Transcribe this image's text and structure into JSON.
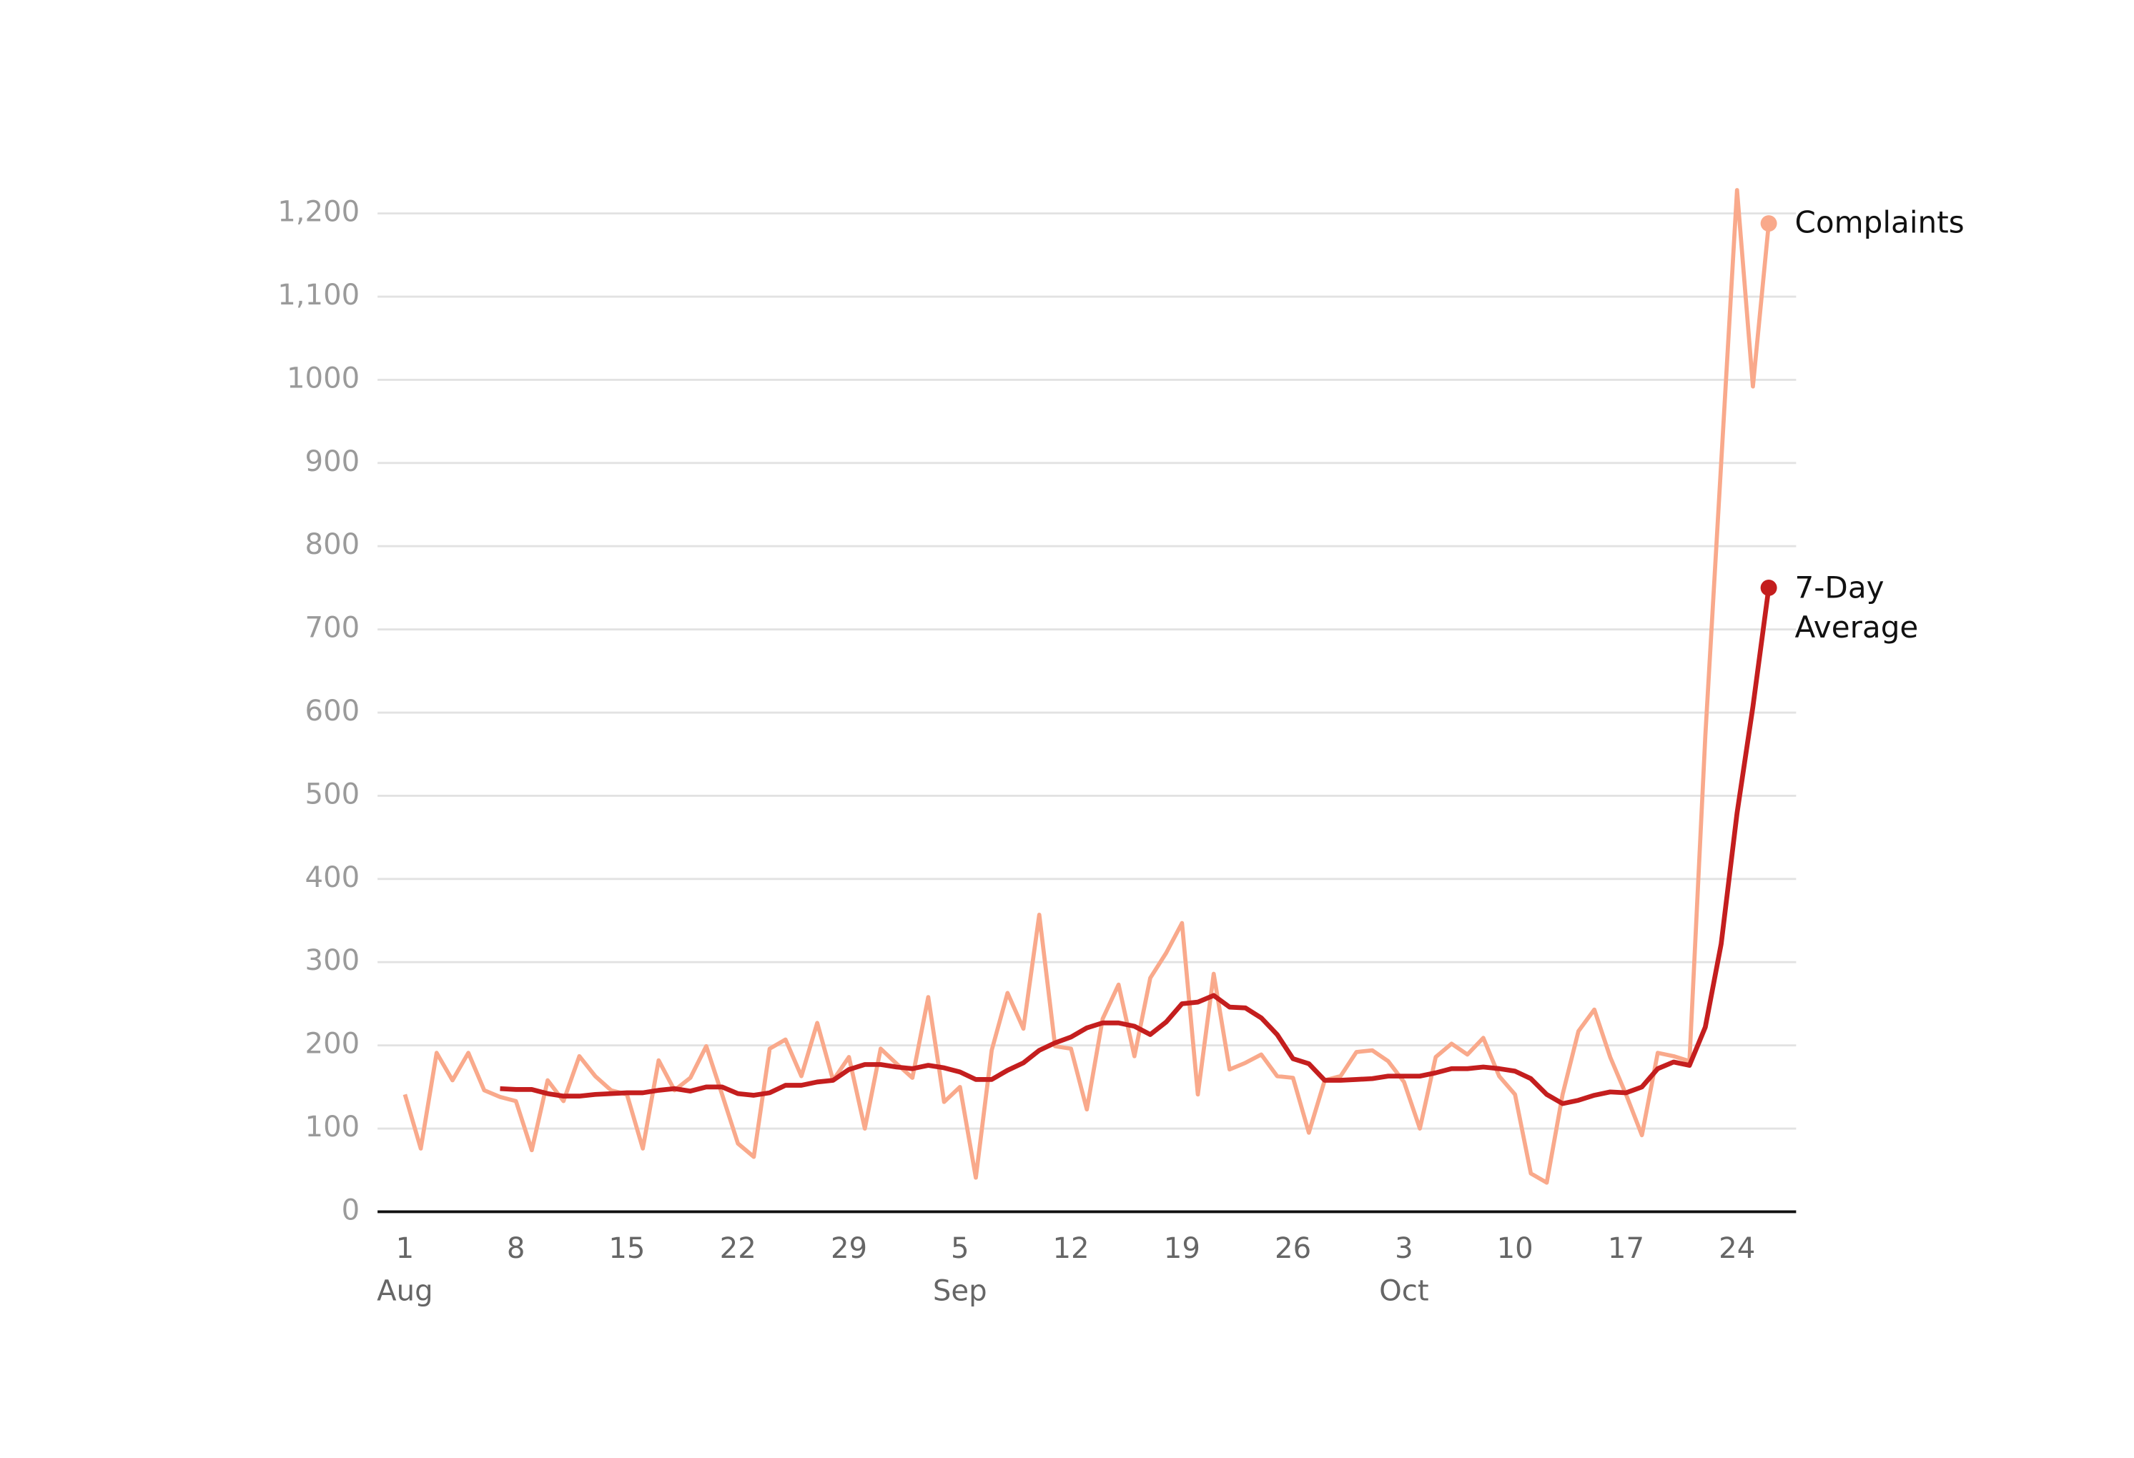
{
  "chart_data": {
    "type": "line",
    "x": [
      "Aug 1",
      "Aug 2",
      "Aug 3",
      "Aug 4",
      "Aug 5",
      "Aug 6",
      "Aug 7",
      "Aug 8",
      "Aug 9",
      "Aug 10",
      "Aug 11",
      "Aug 12",
      "Aug 13",
      "Aug 14",
      "Aug 15",
      "Aug 16",
      "Aug 17",
      "Aug 18",
      "Aug 19",
      "Aug 20",
      "Aug 21",
      "Aug 22",
      "Aug 23",
      "Aug 24",
      "Aug 25",
      "Aug 26",
      "Aug 27",
      "Aug 28",
      "Aug 29",
      "Aug 30",
      "Aug 31",
      "Sep 1",
      "Sep 2",
      "Sep 3",
      "Sep 4",
      "Sep 5",
      "Sep 6",
      "Sep 7",
      "Sep 8",
      "Sep 9",
      "Sep 10",
      "Sep 11",
      "Sep 12",
      "Sep 13",
      "Sep 14",
      "Sep 15",
      "Sep 16",
      "Sep 17",
      "Sep 18",
      "Sep 19",
      "Sep 20",
      "Sep 21",
      "Sep 22",
      "Sep 23",
      "Sep 24",
      "Sep 25",
      "Sep 26",
      "Sep 27",
      "Sep 28",
      "Sep 29",
      "Sep 30",
      "Oct 1",
      "Oct 2",
      "Oct 3",
      "Oct 4",
      "Oct 5",
      "Oct 6",
      "Oct 7",
      "Oct 8",
      "Oct 9",
      "Oct 10",
      "Oct 11",
      "Oct 12",
      "Oct 13",
      "Oct 14",
      "Oct 15",
      "Oct 16",
      "Oct 17",
      "Oct 18",
      "Oct 19",
      "Oct 20",
      "Oct 21",
      "Oct 22",
      "Oct 23",
      "Oct 24",
      "Oct 25",
      "Oct 26"
    ],
    "series": [
      {
        "name": "Complaints",
        "color": "#f9a98b",
        "values": [
          141,
          76,
          191,
          158,
          191,
          146,
          138,
          133,
          74,
          158,
          133,
          187,
          163,
          146,
          141,
          76,
          182,
          146,
          161,
          199,
          141,
          82,
          66,
          196,
          207,
          163,
          227,
          158,
          186,
          100,
          196,
          178,
          161,
          258,
          132,
          150,
          41,
          194,
          263,
          220,
          357,
          199,
          196,
          123,
          232,
          273,
          187,
          281,
          311,
          347,
          141,
          286,
          171,
          179,
          189,
          163,
          161,
          95,
          158,
          163,
          192,
          194,
          181,
          156,
          100,
          186,
          202,
          189,
          209,
          163,
          141,
          46,
          35,
          141,
          217,
          243,
          186,
          141,
          92,
          191,
          187,
          181,
          572,
          900,
          1228,
          992,
          1188
        ]
      },
      {
        "name": "7-Day Average",
        "color": "#c41e1e",
        "values": [
          null,
          null,
          null,
          null,
          null,
          null,
          148,
          147,
          147,
          142,
          139,
          139,
          141,
          142,
          143,
          143,
          146,
          148,
          145,
          150,
          150,
          142,
          140,
          143,
          152,
          152,
          156,
          158,
          171,
          177,
          177,
          174,
          172,
          176,
          173,
          168,
          159,
          159,
          170,
          179,
          194,
          203,
          210,
          221,
          227,
          227,
          223,
          213,
          228,
          250,
          252,
          260,
          246,
          245,
          233,
          213,
          184,
          178,
          158,
          158,
          159,
          160,
          163,
          163,
          163,
          167,
          172,
          172,
          174,
          172,
          169,
          160,
          141,
          130,
          134,
          140,
          144,
          143,
          150,
          172,
          180,
          176,
          222,
          322,
          479,
          607,
          750
        ]
      }
    ],
    "ylim": [
      0,
      1200
    ],
    "yticks": [
      0,
      100,
      200,
      300,
      400,
      500,
      600,
      700,
      800,
      900,
      1000,
      {
        "value": 1100,
        "label": "1,100"
      },
      {
        "value": 1200,
        "label": "1,200"
      }
    ],
    "xticks": [
      {
        "value": "Aug 1",
        "label": "1"
      },
      {
        "value": "Aug 8",
        "label": "8"
      },
      {
        "value": "Aug 15",
        "label": "15"
      },
      {
        "value": "Aug 22",
        "label": "22"
      },
      {
        "value": "Aug 29",
        "label": "29"
      },
      {
        "value": "Sep 5",
        "label": "5"
      },
      {
        "value": "Sep 12",
        "label": "12"
      },
      {
        "value": "Sep 19",
        "label": "19"
      },
      {
        "value": "Sep 26",
        "label": "26"
      },
      {
        "value": "Oct 3",
        "label": "3"
      },
      {
        "value": "Oct 10",
        "label": "10"
      },
      {
        "value": "Oct 17",
        "label": "17"
      },
      {
        "value": "Oct 24",
        "label": "24"
      }
    ],
    "xtick_months": [
      {
        "value": "Aug 1",
        "label": "Aug"
      },
      {
        "value": "Sep 5",
        "label": "Sep"
      },
      {
        "value": "Oct 3",
        "label": "Oct"
      }
    ],
    "grid": true
  }
}
